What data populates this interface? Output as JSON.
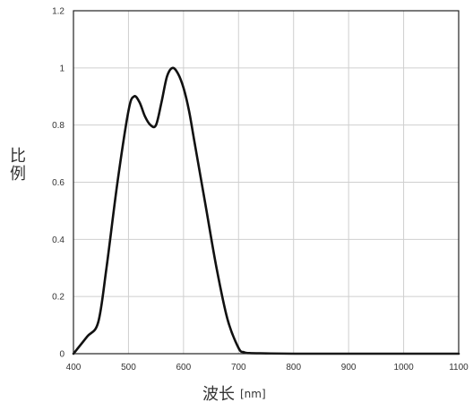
{
  "chart_data": {
    "type": "line",
    "title": "",
    "xlabel": "波长",
    "xunit": "[nm]",
    "ylabel": "比例",
    "xlim": [
      400,
      1100
    ],
    "ylim": [
      0,
      1.2
    ],
    "x_ticks": [
      "400",
      "500",
      "600",
      "700",
      "800",
      "900",
      "1000",
      "1100"
    ],
    "y_ticks": [
      "0",
      "0.2",
      "0.4",
      "0.6",
      "0.8",
      "1",
      "1.2"
    ],
    "grid": true,
    "legend": "none",
    "colors": {
      "line": "#111111",
      "grid": "#cfcfcf",
      "frame": "#222222"
    },
    "series": [
      {
        "x": [
          400,
          425,
          445,
          460,
          480,
          500,
          510,
          520,
          530,
          540,
          550,
          560,
          570,
          580,
          590,
          600,
          610,
          620,
          640,
          660,
          680,
          700,
          710,
          720,
          750,
          800,
          900,
          1000,
          1100
        ],
        "y": [
          0,
          0.06,
          0.11,
          0.3,
          0.6,
          0.85,
          0.9,
          0.88,
          0.83,
          0.8,
          0.8,
          0.88,
          0.97,
          1.0,
          0.98,
          0.93,
          0.85,
          0.74,
          0.52,
          0.3,
          0.12,
          0.02,
          0.005,
          0.002,
          0.001,
          0,
          0,
          0,
          0
        ]
      }
    ]
  }
}
